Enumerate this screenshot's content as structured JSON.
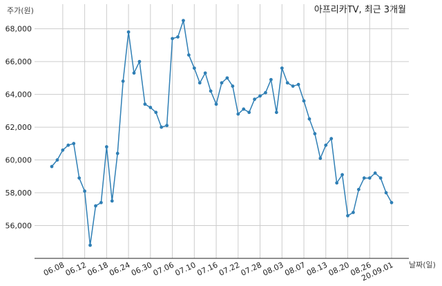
{
  "chart_data": {
    "type": "line",
    "title": "아프리카TV, 최근 3개월",
    "ylabel": "주가(원)",
    "xlabel": "날짜(일)",
    "ylim": [
      54000,
      69500
    ],
    "yticks": [
      56000,
      58000,
      60000,
      62000,
      64000,
      66000,
      68000
    ],
    "ytick_labels": [
      "56,000",
      "58,000",
      "60,000",
      "62,000",
      "64,000",
      "66,000",
      "68,000"
    ],
    "xtick_labels": [
      "06.08",
      "06.12",
      "06.18",
      "06.24",
      "06.30",
      "07.06",
      "07.10",
      "07.16",
      "07.22",
      "07.28",
      "08.03",
      "08.07",
      "08.13",
      "08.20",
      "08.26",
      "20.09.01"
    ],
    "xtick_index": [
      2,
      6,
      10,
      14,
      18,
      22,
      26,
      30,
      34,
      38,
      42,
      46,
      50,
      54,
      58,
      62
    ],
    "grid": true,
    "line_color": "#2f7fb5",
    "series": [
      {
        "values": [
          59600,
          60000,
          60600,
          60900,
          61000,
          58900,
          58100,
          54800,
          57200,
          57400,
          60800,
          57500,
          60400,
          64800,
          67800,
          65300,
          66000,
          63400,
          63200,
          62900,
          62000,
          62100,
          67400,
          67500,
          68500,
          66400,
          65600,
          64700,
          65300,
          64200,
          63400,
          64700,
          65000,
          64500,
          62800,
          63100,
          62900,
          63700,
          63900,
          64100,
          64900,
          62900,
          65600,
          64700,
          64500,
          64600,
          63600,
          62500,
          61600,
          60100,
          60900,
          61300,
          58600,
          59100,
          56600,
          56800,
          58200,
          58900,
          58900,
          59200,
          58900,
          58000,
          57400
        ]
      }
    ]
  }
}
